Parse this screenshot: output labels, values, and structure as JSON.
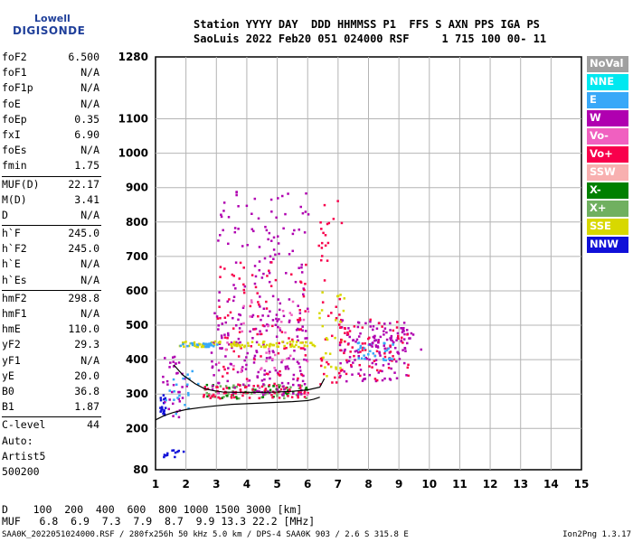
{
  "logo": {
    "line1": "Lowell",
    "line2": "DIGISONDE"
  },
  "header": {
    "line1": "Station YYYY DAY  DDD HHMMSS P1  FFS S AXN PPS IGA PS",
    "line2": "SaoLuis 2022 Feb20 051 024000 RSF     1 715 100 00- 11"
  },
  "params": [
    {
      "label": "foF2",
      "value": "6.500"
    },
    {
      "label": "foF1",
      "value": "N/A"
    },
    {
      "label": "foF1p",
      "value": "N/A"
    },
    {
      "label": "foE",
      "value": "N/A"
    },
    {
      "label": "foEp",
      "value": "0.35"
    },
    {
      "label": "fxI",
      "value": "6.90"
    },
    {
      "label": "foEs",
      "value": "N/A"
    },
    {
      "label": "fmin",
      "value": "1.75"
    },
    {
      "label": "MUF(D)",
      "value": "22.17",
      "sep": true
    },
    {
      "label": "M(D)",
      "value": "3.41"
    },
    {
      "label": "D",
      "value": "N/A"
    },
    {
      "label": "h`F",
      "value": "245.0",
      "sep": true
    },
    {
      "label": "h`F2",
      "value": "245.0"
    },
    {
      "label": "h`E",
      "value": "N/A"
    },
    {
      "label": "h`Es",
      "value": "N/A"
    },
    {
      "label": "hmF2",
      "value": "298.8",
      "sep": true
    },
    {
      "label": "hmF1",
      "value": "N/A"
    },
    {
      "label": "hmE",
      "value": "110.0"
    },
    {
      "label": "yF2",
      "value": "29.3"
    },
    {
      "label": "yF1",
      "value": "N/A"
    },
    {
      "label": "yE",
      "value": "20.0"
    },
    {
      "label": "B0",
      "value": "36.8"
    },
    {
      "label": "B1",
      "value": "1.87"
    },
    {
      "label": "C-level",
      "value": "44",
      "sep": true
    }
  ],
  "auto": {
    "line1": "Auto:",
    "line2": "Artist5",
    "line3": "500200"
  },
  "legend": [
    {
      "label": "NoVal",
      "color": "#a0a0a0"
    },
    {
      "label": "NNE",
      "color": "#00e8f0"
    },
    {
      "label": "E",
      "color": "#38a8f8"
    },
    {
      "label": "W",
      "color": "#b000b0"
    },
    {
      "label": "Vo-",
      "color": "#f060c0"
    },
    {
      "label": "Vo+",
      "color": "#f8004c"
    },
    {
      "label": "SSW",
      "color": "#f8b0b0"
    },
    {
      "label": "X-",
      "color": "#008000"
    },
    {
      "label": "X+",
      "color": "#70b060"
    },
    {
      "label": "SSE",
      "color": "#d8d800"
    },
    {
      "label": "NNW",
      "color": "#1010d8"
    }
  ],
  "chart_data": {
    "type": "scatter",
    "title": "",
    "xlabel": "",
    "ylabel": "",
    "xlim": [
      1,
      15
    ],
    "ylim": [
      80,
      1280
    ],
    "x_ticks": [
      1,
      2,
      3,
      4,
      5,
      6,
      7,
      8,
      9,
      10,
      11,
      12,
      13,
      14,
      15
    ],
    "y_ticks": [
      80,
      200,
      300,
      400,
      500,
      600,
      700,
      800,
      900,
      1000,
      1100,
      1280
    ],
    "grid": true,
    "legend_position": "right",
    "profile": {
      "x": [
        1.0,
        1.3,
        1.6,
        2.0,
        2.5,
        3.0,
        3.5,
        4.0,
        4.5,
        5.0,
        5.5,
        6.0,
        6.2,
        6.4
      ],
      "y": [
        225,
        238,
        247,
        255,
        261,
        266,
        270,
        272,
        274,
        276,
        278,
        281,
        285,
        291
      ]
    },
    "trace": {
      "x": [
        1.6,
        1.9,
        2.3,
        2.6,
        2.9,
        3.2,
        3.6,
        4.0,
        4.5,
        5.0,
        5.5,
        6.0,
        6.4,
        6.55
      ],
      "y": [
        385,
        355,
        330,
        316,
        310,
        306,
        305,
        305,
        305,
        306,
        308,
        312,
        320,
        345
      ]
    },
    "clusters": [
      {
        "x": [
          1.1,
          1.3
        ],
        "y": [
          230,
          300
        ],
        "color": "#1010d8",
        "n": 20
      },
      {
        "x": [
          1.2,
          2.0
        ],
        "y": [
          235,
          420
        ],
        "color": "#b000b0",
        "n": 35
      },
      {
        "x": [
          1.3,
          2.4
        ],
        "y": [
          245,
          370
        ],
        "color": "#38a8f8",
        "n": 20
      },
      {
        "x": [
          2.5,
          6.0
        ],
        "y": [
          290,
          330
        ],
        "color": "#70b060",
        "n": 60
      },
      {
        "x": [
          2.5,
          6.0
        ],
        "y": [
          290,
          330
        ],
        "color": "#008000",
        "n": 30
      },
      {
        "x": [
          2.5,
          6.0
        ],
        "y": [
          290,
          330
        ],
        "color": "#f8004c",
        "n": 70
      },
      {
        "x": [
          2.8,
          6.0
        ],
        "y": [
          300,
          560
        ],
        "color": "#b000b0",
        "n": 180
      },
      {
        "x": [
          3.0,
          6.0
        ],
        "y": [
          560,
          900
        ],
        "color": "#b000b0",
        "n": 90
      },
      {
        "x": [
          3.0,
          6.0
        ],
        "y": [
          330,
          700
        ],
        "color": "#f8004c",
        "n": 90
      },
      {
        "x": [
          1.7,
          6.2
        ],
        "y": [
          440,
          456
        ],
        "color": "#d8d800",
        "n": 90
      },
      {
        "x": [
          1.7,
          3.0
        ],
        "y": [
          440,
          452
        ],
        "color": "#38a8f8",
        "n": 25
      },
      {
        "x": [
          3.0,
          6.0
        ],
        "y": [
          300,
          600
        ],
        "color": "#f060c0",
        "n": 40
      },
      {
        "x": [
          6.3,
          7.1
        ],
        "y": [
          330,
          870
        ],
        "color": "#f8004c",
        "n": 45
      },
      {
        "x": [
          6.3,
          7.2
        ],
        "y": [
          350,
          600
        ],
        "color": "#d8d800",
        "n": 25
      },
      {
        "x": [
          7.0,
          9.3
        ],
        "y": [
          340,
          520
        ],
        "color": "#b000b0",
        "n": 110
      },
      {
        "x": [
          7.0,
          9.3
        ],
        "y": [
          340,
          520
        ],
        "color": "#f8004c",
        "n": 70
      },
      {
        "x": [
          7.5,
          8.8
        ],
        "y": [
          400,
          460
        ],
        "color": "#38a8f8",
        "n": 30
      },
      {
        "x": [
          8.0,
          9.8
        ],
        "y": [
          420,
          480
        ],
        "color": "#b000b0",
        "n": 30
      },
      {
        "x": [
          1.2,
          1.9
        ],
        "y": [
          120,
          140
        ],
        "color": "#1010d8",
        "n": 12
      }
    ]
  },
  "footer": {
    "line1": "D    100  200  400  600  800 1000 1500 3000 [km]",
    "line2": "MUF   6.8  6.9  7.3  7.9  8.7  9.9 13.3 22.2 [MHz]"
  },
  "fileline": "SAA0K_2022051024000.RSF / 280fx256h 50 kHz 5.0 km / DPS-4 SAA0K 903 / 2.6 S 315.8 E",
  "version": "Ion2Png 1.3.17"
}
